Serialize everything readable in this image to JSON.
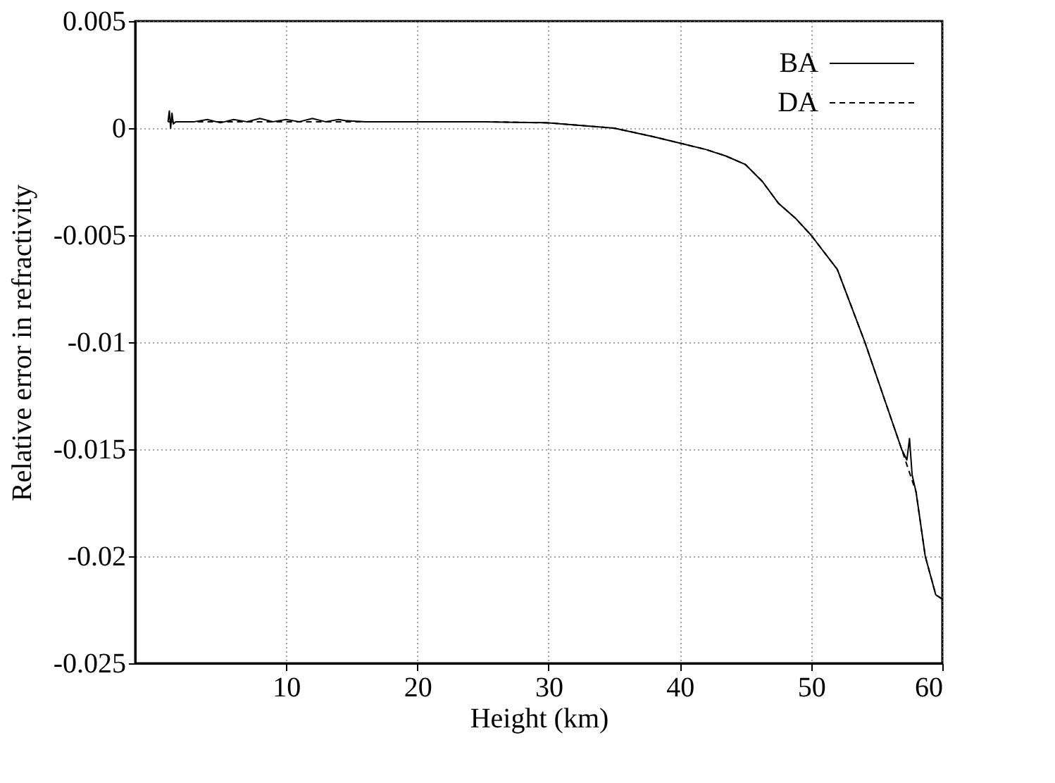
{
  "chart_data": {
    "type": "line",
    "xlabel": "Height (km)",
    "ylabel": "Relative error in refractivity",
    "xlim": [
      -1.5,
      60
    ],
    "xticks": [
      10,
      20,
      30,
      40,
      50,
      60
    ],
    "ylim": [
      -0.025,
      0.005
    ],
    "yticks": [
      -0.025,
      -0.02,
      -0.015,
      -0.01,
      -0.005,
      0,
      0.005
    ],
    "grid": true,
    "legend": "top right",
    "series": [
      {
        "name": "BA",
        "color": "#000000",
        "line_style": "solid",
        "x": [
          1,
          1.1,
          1.2,
          1.3,
          1.4,
          1.6,
          2,
          3,
          4,
          5,
          6,
          7,
          8,
          9,
          10,
          11,
          12,
          13,
          14,
          14.5,
          16,
          20,
          25,
          30,
          33,
          35,
          38,
          40,
          42,
          43.5,
          45,
          46.3,
          47.5,
          48.8,
          50,
          52,
          54.1,
          55.5,
          56.9,
          57.3,
          57.5,
          57.7,
          58,
          58.7,
          59.5,
          60
        ],
        "values": [
          0.0003,
          0.0008,
          0,
          0.0007,
          0.0002,
          0.0003,
          0.0003,
          0.0003,
          0.0004,
          0.00025,
          0.0004,
          0.0003,
          0.00045,
          0.0003,
          0.0004,
          0.0003,
          0.00045,
          0.0003,
          0.0004,
          0.00035,
          0.0003,
          0.0003,
          0.0003,
          0.00025,
          0.0001,
          0,
          -0.0004,
          -0.0007,
          -0.001,
          -0.0013,
          -0.0017,
          -0.0025,
          -0.0035,
          -0.0042,
          -0.005,
          -0.0066,
          -0.01,
          -0.0125,
          -0.015,
          -0.0155,
          -0.0145,
          -0.0162,
          -0.017,
          -0.02,
          -0.0218,
          -0.022
        ]
      },
      {
        "name": "DA",
        "color": "#000000",
        "line_style": "dashed",
        "x": [
          1,
          2,
          5,
          10,
          15,
          20,
          25,
          30,
          33,
          35,
          38,
          40,
          42,
          43.5,
          45,
          46.3,
          47.5,
          48.8,
          50,
          52,
          54.1,
          55.5,
          56.9,
          58,
          58.7,
          59.5,
          60
        ],
        "values": [
          0.0003,
          0.0003,
          0.0003,
          0.0003,
          0.0003,
          0.0003,
          0.0003,
          0.00025,
          0.0001,
          0,
          -0.0004,
          -0.0007,
          -0.001,
          -0.0013,
          -0.0017,
          -0.0025,
          -0.0035,
          -0.0042,
          -0.005,
          -0.0066,
          -0.01,
          -0.0125,
          -0.015,
          -0.017,
          -0.02,
          -0.0218,
          -0.022
        ]
      }
    ]
  }
}
